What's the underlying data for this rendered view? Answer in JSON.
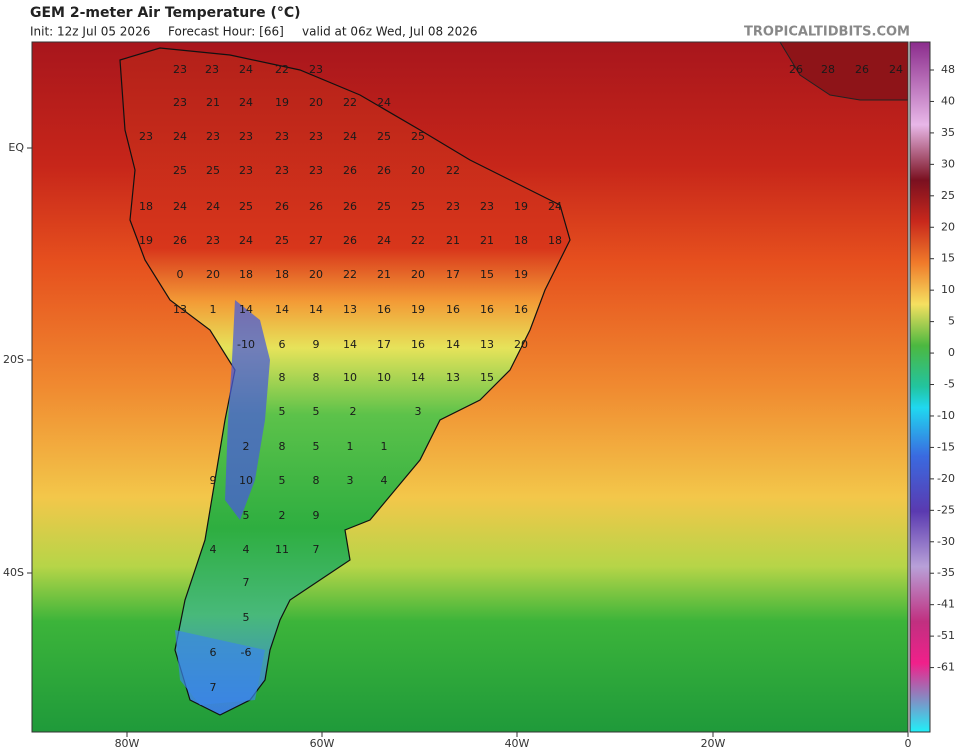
{
  "header": {
    "title": "GEM 2-meter Air Temperature (°C)",
    "init": "Init: 12z Jul 05 2026",
    "forecast_hour": "Forecast Hour: [66]",
    "valid": "valid at 06z Wed, Jul 08 2026",
    "site": "TROPICALTIDBITS.COM"
  },
  "x_axis_labels": [
    "80W",
    "60W",
    "40W",
    "20W",
    "0"
  ],
  "y_axis_labels": [
    "EQ",
    "20S",
    "40S"
  ],
  "colorbar_labels": [
    48,
    40,
    35,
    30,
    25,
    20,
    15,
    10,
    5,
    0,
    -5,
    -10,
    -15,
    -20,
    -25,
    -30,
    -35,
    -41,
    -51,
    -61
  ],
  "map_labels": [
    23,
    23,
    24,
    22,
    23,
    23,
    21,
    24,
    19,
    20,
    22,
    24,
    23,
    24,
    23,
    23,
    23,
    23,
    24,
    25,
    25,
    25,
    25,
    23,
    23,
    23,
    26,
    26,
    20,
    22,
    18,
    24,
    24,
    25,
    26,
    26,
    26,
    25,
    25,
    23,
    23,
    19,
    24,
    19,
    26,
    23,
    24,
    25,
    27,
    26,
    24,
    22,
    21,
    21,
    18,
    18,
    0,
    20,
    18,
    18,
    20,
    22,
    21,
    20,
    17,
    15,
    19,
    13,
    1,
    14,
    14,
    14,
    13,
    16,
    19,
    16,
    16,
    16,
    -10,
    6,
    9,
    14,
    17,
    16,
    14,
    13,
    20,
    8,
    8,
    10,
    10,
    14,
    13,
    15,
    5,
    5,
    2,
    3,
    2,
    8,
    5,
    1,
    1,
    9,
    10,
    5,
    8,
    3,
    4,
    5,
    2,
    9,
    4,
    4,
    11,
    7,
    7,
    5,
    6,
    -6,
    7,
    26,
    28,
    26,
    24
  ]
}
